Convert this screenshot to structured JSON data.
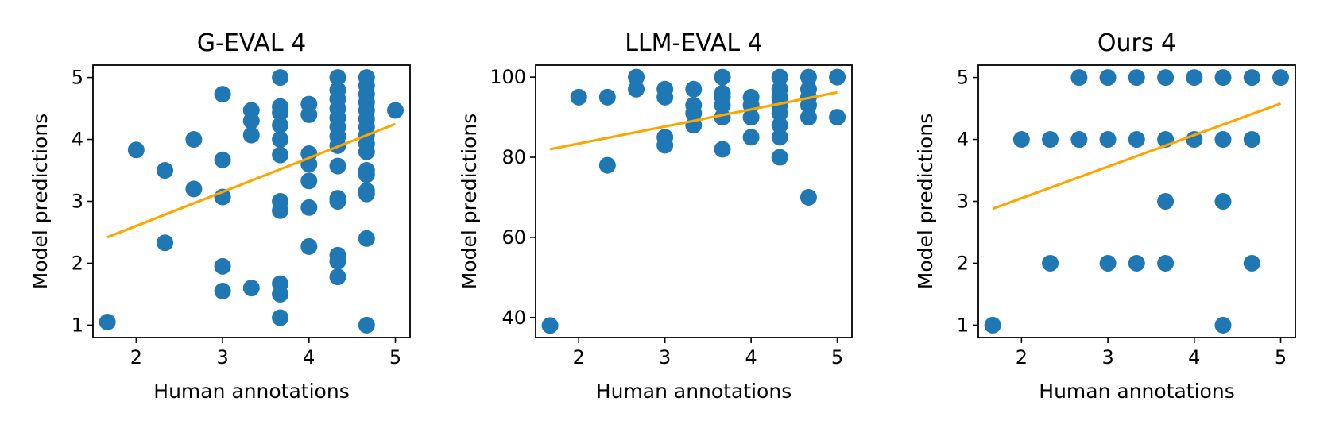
{
  "chart_data": [
    {
      "type": "scatter",
      "title": "G-EVAL 4",
      "xlabel": "Human annotations",
      "ylabel": "Model predictions",
      "xlim": [
        1.5,
        5.17
      ],
      "ylim": [
        0.8,
        5.2
      ],
      "xticks": [
        2,
        3,
        4,
        5
      ],
      "yticks": [
        1,
        2,
        3,
        4,
        5
      ],
      "marker_color": "#1f77b4",
      "fit_color": "#ffa500",
      "fit_line": [
        [
          1.667,
          2.42
        ],
        [
          5.0,
          4.25
        ]
      ],
      "points": [
        [
          1.667,
          1.05
        ],
        [
          2.0,
          3.83
        ],
        [
          2.333,
          3.5
        ],
        [
          2.333,
          2.33
        ],
        [
          2.667,
          4.0
        ],
        [
          2.667,
          3.2
        ],
        [
          3.0,
          4.73
        ],
        [
          3.0,
          3.67
        ],
        [
          3.0,
          3.07
        ],
        [
          3.0,
          1.95
        ],
        [
          3.0,
          1.55
        ],
        [
          3.333,
          4.47
        ],
        [
          3.333,
          4.3
        ],
        [
          3.333,
          4.07
        ],
        [
          3.333,
          1.6
        ],
        [
          3.667,
          5.0
        ],
        [
          3.667,
          4.53
        ],
        [
          3.667,
          4.43
        ],
        [
          3.667,
          4.23
        ],
        [
          3.667,
          4.0
        ],
        [
          3.667,
          3.75
        ],
        [
          3.667,
          3.0
        ],
        [
          3.667,
          2.85
        ],
        [
          3.667,
          1.67
        ],
        [
          3.667,
          1.5
        ],
        [
          3.667,
          1.12
        ],
        [
          4.0,
          4.57
        ],
        [
          4.0,
          4.4
        ],
        [
          4.0,
          3.77
        ],
        [
          4.0,
          3.6
        ],
        [
          4.0,
          3.33
        ],
        [
          4.0,
          2.9
        ],
        [
          4.0,
          2.27
        ],
        [
          4.333,
          5.0
        ],
        [
          4.333,
          4.8
        ],
        [
          4.333,
          4.65
        ],
        [
          4.333,
          4.5
        ],
        [
          4.333,
          4.35
        ],
        [
          4.333,
          4.2
        ],
        [
          4.333,
          4.05
        ],
        [
          4.333,
          3.9
        ],
        [
          4.333,
          3.57
        ],
        [
          4.333,
          3.05
        ],
        [
          4.333,
          3.0
        ],
        [
          4.333,
          2.13
        ],
        [
          4.333,
          2.03
        ],
        [
          4.333,
          1.78
        ],
        [
          4.667,
          5.0
        ],
        [
          4.667,
          4.87
        ],
        [
          4.667,
          4.73
        ],
        [
          4.667,
          4.6
        ],
        [
          4.667,
          4.47
        ],
        [
          4.667,
          4.33
        ],
        [
          4.667,
          4.2
        ],
        [
          4.667,
          4.07
        ],
        [
          4.667,
          3.93
        ],
        [
          4.667,
          3.8
        ],
        [
          4.667,
          3.5
        ],
        [
          4.667,
          3.43
        ],
        [
          4.667,
          3.17
        ],
        [
          4.667,
          3.12
        ],
        [
          4.667,
          2.4
        ],
        [
          4.667,
          1.0
        ],
        [
          5.0,
          4.47
        ]
      ]
    },
    {
      "type": "scatter",
      "title": "LLM-EVAL 4",
      "xlabel": "Human annotations",
      "ylabel": "Model predictions",
      "xlim": [
        1.5,
        5.17
      ],
      "ylim": [
        35,
        103
      ],
      "xticks": [
        2,
        3,
        4,
        5
      ],
      "yticks": [
        40,
        60,
        80,
        100
      ],
      "marker_color": "#1f77b4",
      "fit_color": "#ffa500",
      "fit_line": [
        [
          1.667,
          82.0
        ],
        [
          5.0,
          96.2
        ]
      ],
      "points": [
        [
          1.667,
          38
        ],
        [
          2.0,
          95
        ],
        [
          2.333,
          95
        ],
        [
          2.333,
          78
        ],
        [
          2.667,
          100
        ],
        [
          2.667,
          97
        ],
        [
          3.0,
          97
        ],
        [
          3.0,
          95
        ],
        [
          3.0,
          85
        ],
        [
          3.0,
          83
        ],
        [
          3.333,
          97
        ],
        [
          3.333,
          93
        ],
        [
          3.333,
          91
        ],
        [
          3.333,
          88
        ],
        [
          3.667,
          100
        ],
        [
          3.667,
          96
        ],
        [
          3.667,
          95
        ],
        [
          3.667,
          93
        ],
        [
          3.667,
          90
        ],
        [
          3.667,
          82
        ],
        [
          4.0,
          95
        ],
        [
          4.0,
          93
        ],
        [
          4.0,
          90
        ],
        [
          4.0,
          85
        ],
        [
          4.333,
          100
        ],
        [
          4.333,
          97
        ],
        [
          4.333,
          95
        ],
        [
          4.333,
          93
        ],
        [
          4.333,
          91
        ],
        [
          4.333,
          88
        ],
        [
          4.333,
          85
        ],
        [
          4.333,
          80
        ],
        [
          4.667,
          100
        ],
        [
          4.667,
          97
        ],
        [
          4.667,
          95
        ],
        [
          4.667,
          93
        ],
        [
          4.667,
          90
        ],
        [
          4.667,
          70
        ],
        [
          5.0,
          100
        ],
        [
          5.0,
          90
        ]
      ]
    },
    {
      "type": "scatter",
      "title": "Ours 4",
      "xlabel": "Human annotations",
      "ylabel": "Model predictions",
      "xlim": [
        1.5,
        5.17
      ],
      "ylim": [
        0.8,
        5.2
      ],
      "xticks": [
        2,
        3,
        4,
        5
      ],
      "yticks": [
        1,
        2,
        3,
        4,
        5
      ],
      "marker_color": "#1f77b4",
      "fit_color": "#ffa500",
      "fit_line": [
        [
          1.667,
          2.88
        ],
        [
          5.0,
          4.58
        ]
      ],
      "points": [
        [
          1.667,
          1
        ],
        [
          2.0,
          4
        ],
        [
          2.333,
          4
        ],
        [
          2.333,
          2
        ],
        [
          2.667,
          5
        ],
        [
          2.667,
          4
        ],
        [
          3.0,
          5
        ],
        [
          3.0,
          4
        ],
        [
          3.0,
          2
        ],
        [
          3.333,
          5
        ],
        [
          3.333,
          4
        ],
        [
          3.333,
          2
        ],
        [
          3.667,
          5
        ],
        [
          3.667,
          4
        ],
        [
          3.667,
          3
        ],
        [
          3.667,
          2
        ],
        [
          4.0,
          5
        ],
        [
          4.0,
          4
        ],
        [
          4.333,
          5
        ],
        [
          4.333,
          4
        ],
        [
          4.333,
          3
        ],
        [
          4.333,
          1
        ],
        [
          4.667,
          5
        ],
        [
          4.667,
          4
        ],
        [
          4.667,
          2
        ],
        [
          5.0,
          5
        ]
      ]
    }
  ]
}
